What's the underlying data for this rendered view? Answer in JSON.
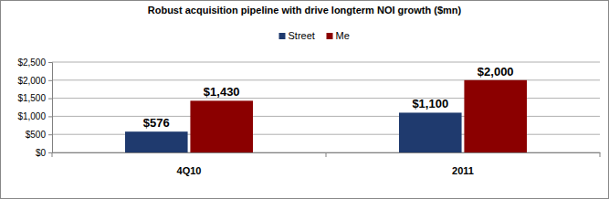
{
  "chart_data": {
    "type": "bar",
    "title": "Robust acquisition pipeline with drive longterm NOI growth ($mn)",
    "categories": [
      "4Q10",
      "2011"
    ],
    "series": [
      {
        "name": "Street",
        "color": "#1f3a6e",
        "values": [
          576,
          1100
        ],
        "value_labels": [
          "$576",
          "$1,100"
        ]
      },
      {
        "name": "Me",
        "color": "#8b0000",
        "values": [
          1430,
          2000
        ],
        "value_labels": [
          "$1,430",
          "$2,000"
        ]
      }
    ],
    "ylim": [
      0,
      2500
    ],
    "yticks": [
      {
        "value": 0,
        "label": "$0"
      },
      {
        "value": 500,
        "label": "$500"
      },
      {
        "value": 1000,
        "label": "$1,000"
      },
      {
        "value": 1500,
        "label": "$1,500"
      },
      {
        "value": 2000,
        "label": "$2,000"
      },
      {
        "value": 2500,
        "label": "$2,500"
      }
    ],
    "grid": true,
    "legend": "top",
    "data_labels": true
  }
}
